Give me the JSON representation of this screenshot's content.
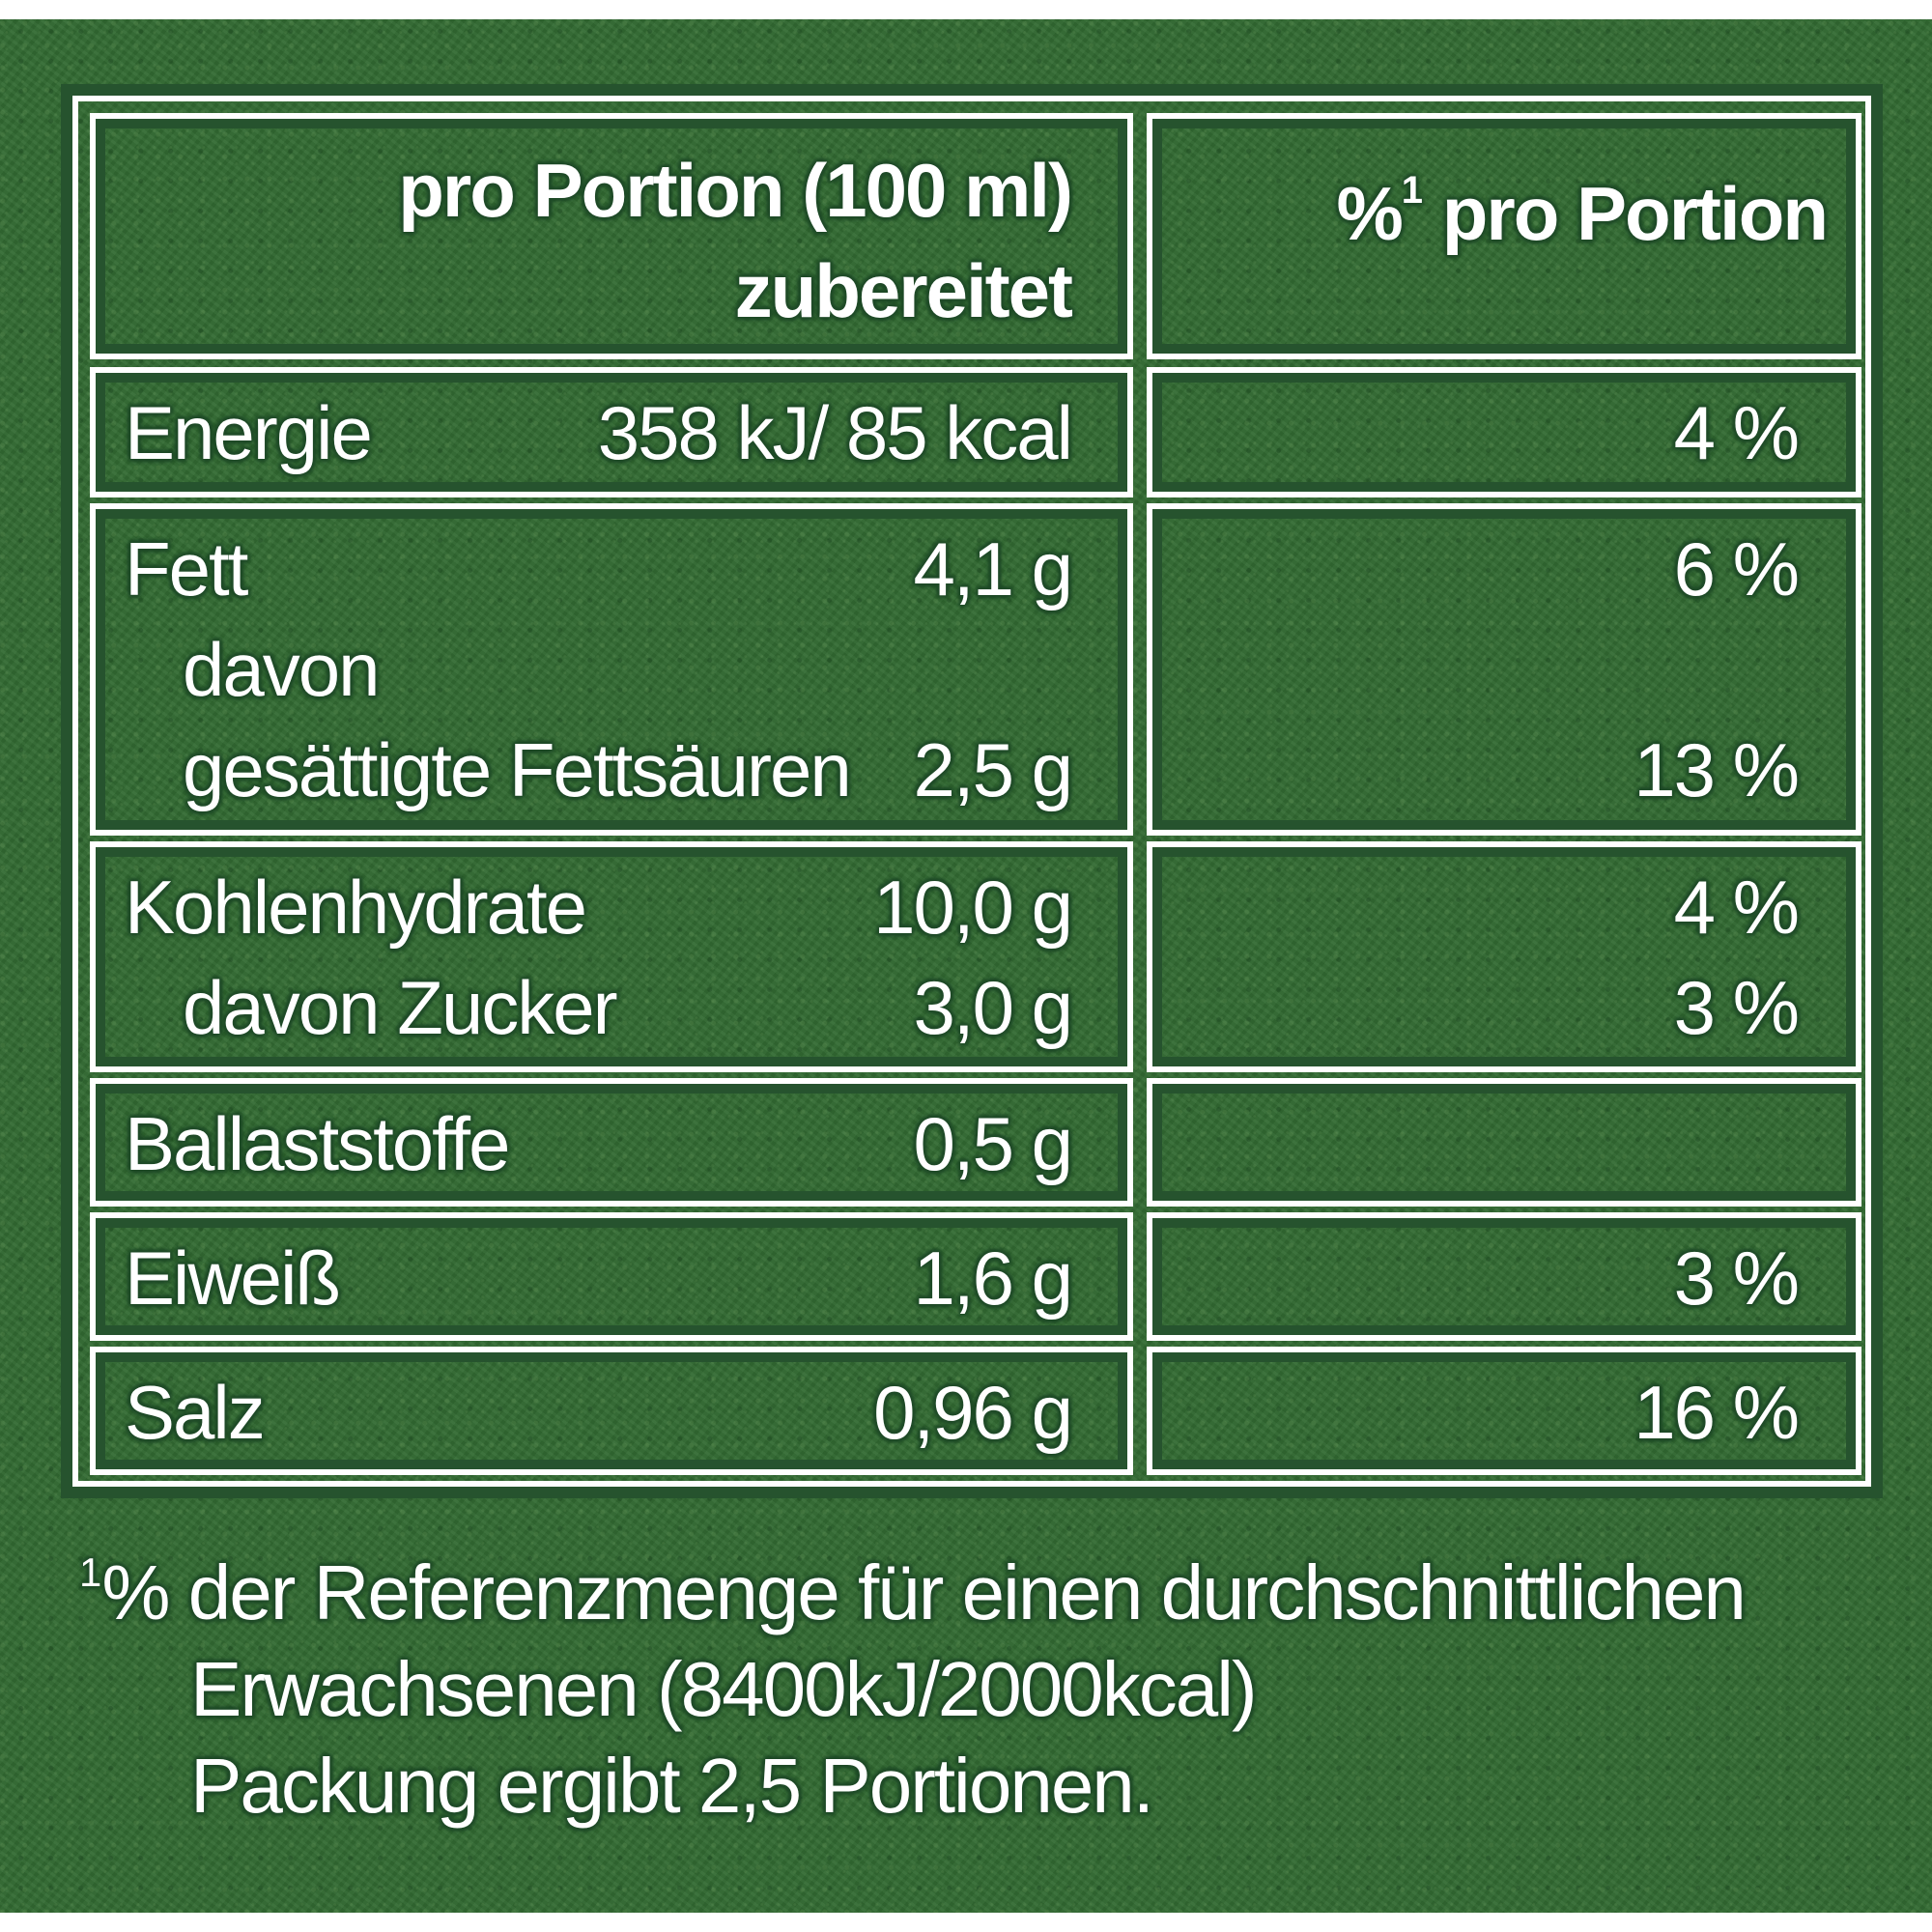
{
  "header": {
    "col1_line1": "pro Portion (100 ml)",
    "col1_line2": "zubereitet",
    "col2_sup": "1",
    "col2_pre": "%",
    "col2_text": " pro Portion"
  },
  "rows": {
    "energy": {
      "label": "Energie",
      "value": "358 kJ/ 85 kcal",
      "pct": "4 %"
    },
    "fat": {
      "label": "Fett",
      "value": "4,1 g",
      "pct": "6 %"
    },
    "fat_sub_prefix": {
      "label": "davon"
    },
    "saturated": {
      "label": "gesättigte Fettsäuren",
      "value": "2,5 g",
      "pct": "13 %"
    },
    "carbs": {
      "label": "Kohlenhydrate",
      "value": "10,0 g",
      "pct": "4 %"
    },
    "sugar": {
      "label": "davon Zucker",
      "value": "3,0 g",
      "pct": "3 %"
    },
    "fiber": {
      "label": "Ballaststoffe",
      "value": "0,5 g",
      "pct": ""
    },
    "protein": {
      "label": "Eiweiß",
      "value": "1,6 g",
      "pct": "3 %"
    },
    "salt": {
      "label": "Salz",
      "value": "0,96 g",
      "pct": "16 %"
    }
  },
  "footnote": {
    "sup": "1",
    "line1": "% der Referenzmenge für einen durchschnittlichen",
    "line2": "Erwachsenen (8400kJ/2000kcal)",
    "line3": "Packung ergibt 2,5 Portionen."
  },
  "colors": {
    "panel_green": "#336b33",
    "border_dark": "#26532e",
    "text": "#ffffff"
  }
}
